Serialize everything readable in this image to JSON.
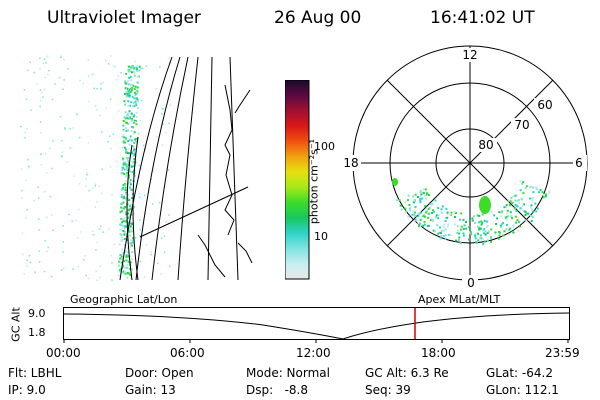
{
  "header": {
    "instrument": "Ultraviolet Imager",
    "date": "26 Aug 00",
    "time": "16:41:02 UT"
  },
  "colorbar": {
    "unit_label": "photon cm⁻²s⁻¹",
    "ticks": [
      "100",
      "10"
    ],
    "scale": "log",
    "colors": [
      "#e8e8e8",
      "#c8eef0",
      "#7fe3e0",
      "#2fd2c8",
      "#18c860",
      "#3cdc28",
      "#a8e818",
      "#e8e010",
      "#f0a010",
      "#f05010",
      "#d81818",
      "#a01030",
      "#5a0a40",
      "#1a0a2a"
    ]
  },
  "polar_plot": {
    "mlt_labels": {
      "top": "12",
      "left": "18",
      "right": "6",
      "bottom": "0"
    },
    "lat_labels": [
      "80",
      "70",
      "60"
    ]
  },
  "timeline": {
    "y_axis_label": "GC Alt",
    "y_ticks": [
      "9.0",
      "1.8"
    ],
    "left_title": "Geographic Lat/Lon",
    "right_title": "Apex MLat/MLT",
    "x_ticks": [
      "00:00",
      "06:00",
      "12:00",
      "18:00",
      "23:59"
    ],
    "marker_time": "16:41",
    "marker_color": "#cc0000"
  },
  "info": {
    "flt": "Flt: LBHL",
    "ip": "IP:  9.0",
    "door": "Door: Open",
    "gain": "Gain: 13",
    "mode": "Mode: Normal",
    "dsp": "Dsp:   -8.8",
    "gcalt": "GC Alt: 6.3 Re",
    "seq": "Seq: 39",
    "glat": "GLat: -64.2",
    "glon": "GLon: 112.1"
  }
}
